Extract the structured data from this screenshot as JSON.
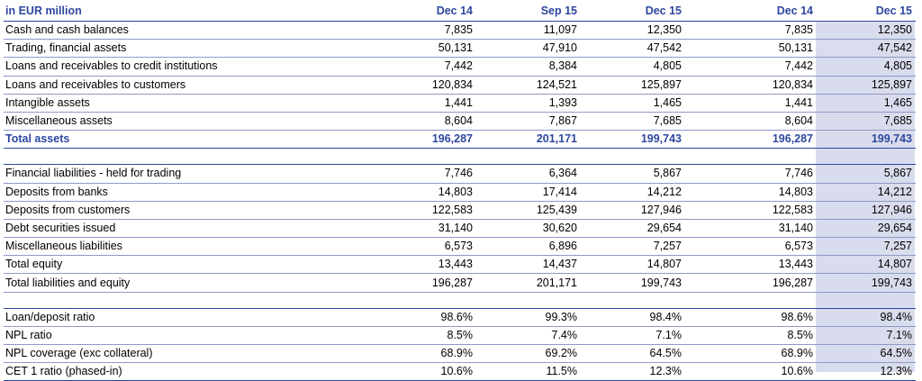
{
  "header": {
    "unit_label": "in EUR million",
    "columns": [
      "Dec 14",
      "Sep 15",
      "Dec 15",
      "Dec 14",
      "Dec 15"
    ]
  },
  "assets": [
    {
      "label": "Cash and cash balances",
      "values": [
        "7,835",
        "11,097",
        "12,350",
        "7,835",
        "12,350"
      ]
    },
    {
      "label": "Trading, financial assets",
      "values": [
        "50,131",
        "47,910",
        "47,542",
        "50,131",
        "47,542"
      ]
    },
    {
      "label": "Loans and receivables to credit institutions",
      "values": [
        "7,442",
        "8,384",
        "4,805",
        "7,442",
        "4,805"
      ]
    },
    {
      "label": "Loans and receivables to customers",
      "values": [
        "120,834",
        "124,521",
        "125,897",
        "120,834",
        "125,897"
      ]
    },
    {
      "label": "Intangible assets",
      "values": [
        "1,441",
        "1,393",
        "1,465",
        "1,441",
        "1,465"
      ]
    },
    {
      "label": "Miscellaneous assets",
      "values": [
        "8,604",
        "7,867",
        "7,685",
        "8,604",
        "7,685"
      ]
    },
    {
      "label": "Total assets",
      "values": [
        "196,287",
        "201,171",
        "199,743",
        "196,287",
        "199,743"
      ]
    }
  ],
  "liabilities": [
    {
      "label": "Financial liabilities - held for trading",
      "values": [
        "7,746",
        "6,364",
        "5,867",
        "7,746",
        "5,867"
      ]
    },
    {
      "label": "Deposits from banks",
      "values": [
        "14,803",
        "17,414",
        "14,212",
        "14,803",
        "14,212"
      ]
    },
    {
      "label": "Deposits from customers",
      "values": [
        "122,583",
        "125,439",
        "127,946",
        "122,583",
        "127,946"
      ]
    },
    {
      "label": "Debt securities issued",
      "values": [
        "31,140",
        "30,620",
        "29,654",
        "31,140",
        "29,654"
      ]
    },
    {
      "label": "Miscellaneous liabilities",
      "values": [
        "6,573",
        "6,896",
        "7,257",
        "6,573",
        "7,257"
      ]
    },
    {
      "label": "Total equity",
      "values": [
        "13,443",
        "14,437",
        "14,807",
        "13,443",
        "14,807"
      ]
    },
    {
      "label": "Total liabilities and equity",
      "values": [
        "196,287",
        "201,171",
        "199,743",
        "196,287",
        "199,743"
      ]
    }
  ],
  "ratios": [
    {
      "label": "Loan/deposit ratio",
      "values": [
        "98.6%",
        "99.3%",
        "98.4%",
        "98.6%",
        "98.4%"
      ]
    },
    {
      "label": "NPL ratio",
      "values": [
        "8.5%",
        "7.4%",
        "7.1%",
        "8.5%",
        "7.1%"
      ]
    },
    {
      "label": "NPL coverage (exc collateral)",
      "values": [
        "68.9%",
        "69.2%",
        "64.5%",
        "68.9%",
        "64.5%"
      ]
    },
    {
      "label": "CET 1 ratio (phased-in)",
      "values": [
        "10.6%",
        "11.5%",
        "12.3%",
        "10.6%",
        "12.3%"
      ]
    }
  ],
  "colors": {
    "header_text": "#2e47a0",
    "rule": "#2e47a0",
    "row_rule": "#8e99c9",
    "highlight_column": "#d9dcec"
  }
}
